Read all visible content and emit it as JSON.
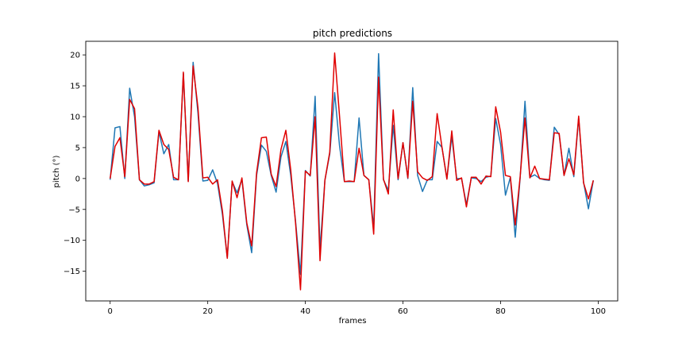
{
  "chart_data": {
    "type": "line",
    "title": "pitch predictions",
    "xlabel": "frames",
    "ylabel": "pitch (°)",
    "xlim": [
      -5,
      104
    ],
    "ylim": [
      -19.8,
      22.2
    ],
    "xticks": [
      0,
      20,
      40,
      60,
      80,
      100
    ],
    "yticks": [
      -15,
      -10,
      -5,
      0,
      5,
      10,
      15,
      20
    ],
    "xtick_labels": [
      "0",
      "20",
      "40",
      "60",
      "80",
      "100"
    ],
    "ytick_labels": [
      "−15",
      "−10",
      "−5",
      "0",
      "5",
      "10",
      "15",
      "20"
    ],
    "grid": false,
    "legend": "none",
    "x": [
      0,
      1,
      2,
      3,
      4,
      5,
      6,
      7,
      8,
      9,
      10,
      11,
      12,
      13,
      14,
      15,
      16,
      17,
      18,
      19,
      20,
      21,
      22,
      23,
      24,
      25,
      26,
      27,
      28,
      29,
      30,
      31,
      32,
      33,
      34,
      35,
      36,
      37,
      38,
      39,
      40,
      41,
      42,
      43,
      44,
      45,
      46,
      47,
      48,
      49,
      50,
      51,
      52,
      53,
      54,
      55,
      56,
      57,
      58,
      59,
      60,
      61,
      62,
      63,
      64,
      65,
      66,
      67,
      68,
      69,
      70,
      71,
      72,
      73,
      74,
      75,
      76,
      77,
      78,
      79,
      80,
      81,
      82,
      83,
      84,
      85,
      86,
      87,
      88,
      89,
      90,
      91,
      92,
      93,
      94,
      95,
      96,
      97,
      98,
      99
    ],
    "series": [
      {
        "color": "#1f77b4",
        "values": [
          -0.2,
          8.2,
          8.4,
          0,
          14.6,
          10,
          -0.2,
          -1.2,
          -1,
          -0.7,
          7.6,
          4,
          5.5,
          -0.2,
          -0.2,
          17,
          -0.4,
          18.8,
          10.5,
          -0.4,
          -0.3,
          1.4,
          -0.8,
          -5.8,
          -12.8,
          -0.5,
          -2.3,
          -0.2,
          -7.5,
          -12,
          0.5,
          5.4,
          4.4,
          0.5,
          -2.2,
          3.5,
          6,
          0.5,
          -7,
          -15.5,
          1.3,
          0.4,
          13.3,
          -11.5,
          -0.3,
          4,
          13.9,
          5.3,
          -0.5,
          -0.5,
          -0.5,
          9.8,
          0.5,
          -0.2,
          -8,
          20.2,
          -0.2,
          -1.9,
          8.6,
          -0.2,
          5.8,
          0,
          14.7,
          0.5,
          -2.1,
          -0.2,
          -0.2,
          6,
          5,
          0,
          6.8,
          0,
          0,
          -4.2,
          0.1,
          0,
          -0.5,
          0.2,
          0.4,
          9.7,
          5.5,
          -2.7,
          0.2,
          -9.5,
          0,
          12.5,
          0.2,
          0.6,
          0,
          -0.2,
          -0.3,
          8.3,
          7.1,
          0.5,
          4.9,
          0.3,
          9.8,
          -0.6,
          -4.9,
          -0.3
        ]
      },
      {
        "color": "#e00000",
        "values": [
          0,
          5.2,
          6.6,
          0.3,
          12.8,
          11.3,
          -0.2,
          -0.9,
          -0.9,
          -0.5,
          7.8,
          5.5,
          4.7,
          0.2,
          -0.2,
          17.2,
          -0.5,
          18.2,
          11.4,
          0.1,
          0.2,
          -0.9,
          -0.2,
          -5.2,
          -12.9,
          -0.4,
          -3.1,
          0.1,
          -7.2,
          -10.9,
          0.9,
          6.6,
          6.7,
          0.7,
          -1.3,
          4.7,
          7.8,
          1.4,
          -7.3,
          -18,
          1.2,
          0.5,
          10,
          -13.3,
          -0.3,
          4.3,
          20.3,
          10.1,
          -0.5,
          -0.4,
          -0.5,
          4.9,
          0.5,
          -0.2,
          -9,
          16.4,
          -0.1,
          -2.5,
          11.1,
          0,
          5.8,
          0.1,
          12.5,
          1.1,
          0.1,
          -0.3,
          0.3,
          10.5,
          5,
          -0.1,
          7.7,
          -0.3,
          0.1,
          -4.6,
          0.2,
          0.2,
          -0.9,
          0.4,
          0.3,
          11.6,
          7.5,
          0.5,
          0.3,
          -7.5,
          0.2,
          9.8,
          0.1,
          2,
          0,
          -0.1,
          -0.2,
          7.4,
          7.3,
          0.5,
          3.2,
          0.6,
          10.1,
          -0.7,
          -3.3,
          -0.3
        ]
      }
    ]
  }
}
